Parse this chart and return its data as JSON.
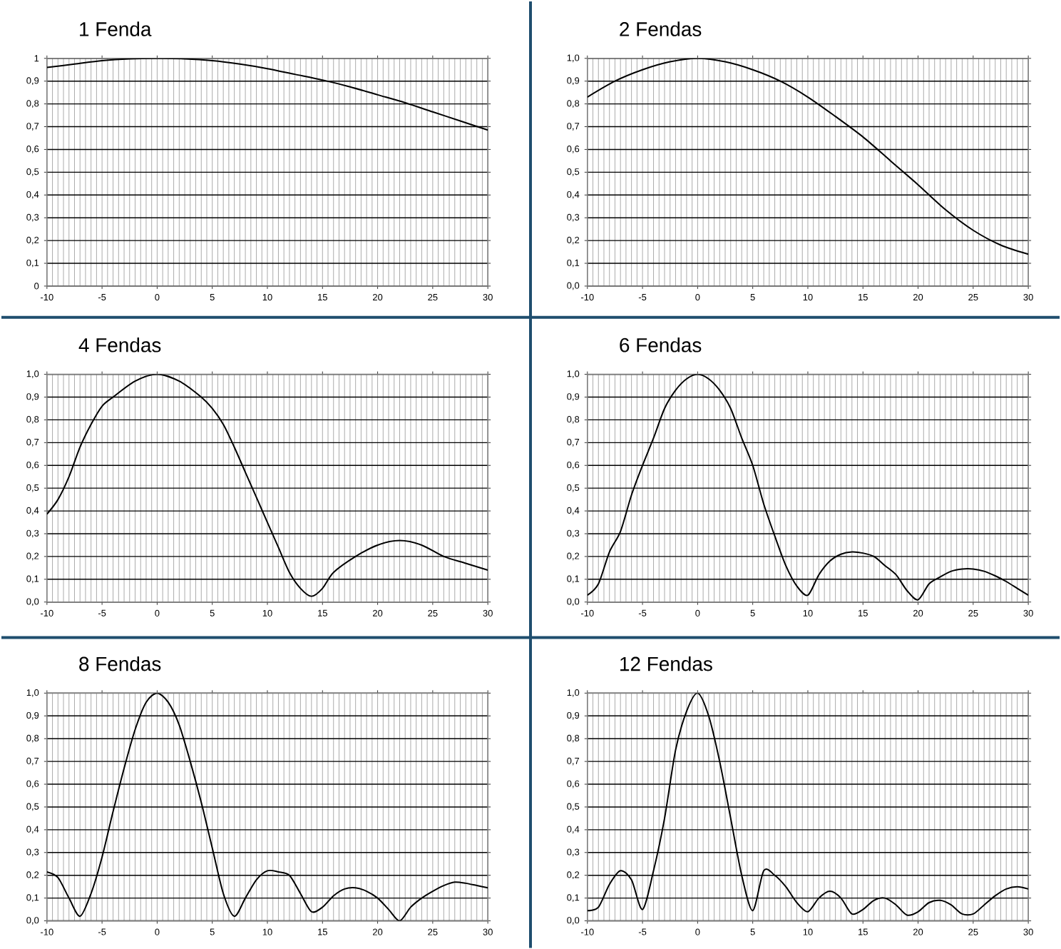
{
  "chart_data": [
    {
      "type": "line",
      "title": "1 Fenda",
      "color": "#000000",
      "xlim": [
        -10,
        30
      ],
      "ylim": [
        0,
        1
      ],
      "grid": true,
      "x": [
        -10,
        -7.5,
        -5,
        -2.5,
        0,
        2.5,
        5,
        7.5,
        10,
        12.5,
        15,
        17.5,
        20,
        22.5,
        25,
        27.5,
        30
      ],
      "values": [
        0.96,
        0.975,
        0.99,
        0.998,
        1,
        0.998,
        0.99,
        0.975,
        0.955,
        0.93,
        0.905,
        0.875,
        0.84,
        0.805,
        0.765,
        0.725,
        0.685
      ],
      "xticks": [
        -10,
        -5,
        0,
        5,
        10,
        15,
        20,
        25,
        30
      ],
      "yticks": [
        0,
        {
          "value": 0.1,
          "label": "0,1"
        },
        {
          "value": 0.2,
          "label": "0,2"
        },
        {
          "value": 0.3,
          "label": "0,3"
        },
        {
          "value": 0.4,
          "label": "0,4"
        },
        {
          "value": 0.5,
          "label": "0,5"
        },
        {
          "value": 0.6,
          "label": "0,6"
        },
        {
          "value": 0.7,
          "label": "0,7"
        },
        {
          "value": 0.8,
          "label": "0,8"
        },
        {
          "value": 0.9,
          "label": "0,9"
        },
        1
      ]
    },
    {
      "type": "line",
      "title": "2 Fendas",
      "color": "#000000",
      "xlim": [
        -10,
        30
      ],
      "ylim": [
        0,
        1
      ],
      "grid": true,
      "x": [
        -10,
        -7.5,
        -5,
        -2.5,
        0,
        2.5,
        5,
        7.5,
        10,
        12.5,
        15,
        17.5,
        20,
        22.5,
        25,
        27.5,
        30
      ],
      "values": [
        0.83,
        0.9,
        0.95,
        0.985,
        1,
        0.985,
        0.95,
        0.9,
        0.83,
        0.745,
        0.655,
        0.55,
        0.445,
        0.335,
        0.245,
        0.18,
        0.14
      ],
      "xticks": [
        -10,
        -5,
        0,
        5,
        10,
        15,
        20,
        25,
        30
      ],
      "yticks": [
        {
          "value": 0,
          "label": "0,0"
        },
        {
          "value": 0.1,
          "label": "0,1"
        },
        {
          "value": 0.2,
          "label": "0,2"
        },
        {
          "value": 0.3,
          "label": "0,3"
        },
        {
          "value": 0.4,
          "label": "0,4"
        },
        {
          "value": 0.5,
          "label": "0,5"
        },
        {
          "value": 0.6,
          "label": "0,6"
        },
        {
          "value": 0.7,
          "label": "0,7"
        },
        {
          "value": 0.8,
          "label": "0,8"
        },
        {
          "value": 0.9,
          "label": "0,9"
        },
        {
          "value": 1,
          "label": "1,0"
        }
      ]
    },
    {
      "type": "line",
      "title": "4 Fendas",
      "color": "#000000",
      "xlim": [
        -10,
        30
      ],
      "ylim": [
        0,
        1
      ],
      "grid": true,
      "x": [
        -10,
        -9,
        -8,
        -7,
        -6,
        -5,
        -4,
        -2,
        0,
        2,
        4,
        5,
        6,
        7,
        8,
        9,
        10,
        11,
        12,
        13,
        14,
        15,
        16,
        18,
        20,
        22,
        24,
        26,
        28,
        30
      ],
      "values": [
        0.386,
        0.45,
        0.55,
        0.68,
        0.78,
        0.86,
        0.9,
        0.97,
        1,
        0.97,
        0.9,
        0.85,
        0.78,
        0.68,
        0.57,
        0.46,
        0.35,
        0.24,
        0.13,
        0.06,
        0.025,
        0.06,
        0.13,
        0.2,
        0.25,
        0.27,
        0.25,
        0.2,
        0.17,
        0.14
      ],
      "xticks": [
        -10,
        -5,
        0,
        5,
        10,
        15,
        20,
        25,
        30
      ],
      "yticks": [
        {
          "value": 0,
          "label": "0,0"
        },
        {
          "value": 0.1,
          "label": "0,1"
        },
        {
          "value": 0.2,
          "label": "0,2"
        },
        {
          "value": 0.3,
          "label": "0,3"
        },
        {
          "value": 0.4,
          "label": "0,4"
        },
        {
          "value": 0.5,
          "label": "0,5"
        },
        {
          "value": 0.6,
          "label": "0,6"
        },
        {
          "value": 0.7,
          "label": "0,7"
        },
        {
          "value": 0.8,
          "label": "0,8"
        },
        {
          "value": 0.9,
          "label": "0,9"
        },
        {
          "value": 1,
          "label": "1,0"
        }
      ]
    },
    {
      "type": "line",
      "title": "6 Fendas",
      "color": "#000000",
      "xlim": [
        -10,
        30
      ],
      "ylim": [
        0,
        1
      ],
      "grid": true,
      "x": [
        -10,
        -9,
        -8,
        -7,
        -6,
        -5,
        -4,
        -3,
        -2,
        -1,
        0,
        1,
        2,
        3,
        4,
        5,
        6,
        7,
        8,
        9,
        10,
        11,
        12,
        13,
        14,
        15,
        16,
        17,
        18,
        19,
        20,
        21,
        22,
        23,
        24,
        25,
        26,
        27,
        28,
        29,
        30
      ],
      "values": [
        0.03,
        0.08,
        0.22,
        0.31,
        0.47,
        0.6,
        0.72,
        0.85,
        0.93,
        0.98,
        1,
        0.98,
        0.93,
        0.85,
        0.72,
        0.6,
        0.43,
        0.29,
        0.16,
        0.07,
        0.03,
        0.12,
        0.18,
        0.21,
        0.22,
        0.215,
        0.2,
        0.16,
        0.12,
        0.05,
        0.01,
        0.08,
        0.11,
        0.135,
        0.145,
        0.145,
        0.135,
        0.115,
        0.09,
        0.06,
        0.03
      ],
      "xticks": [
        -10,
        -5,
        0,
        5,
        10,
        15,
        20,
        25,
        30
      ],
      "yticks": [
        {
          "value": 0,
          "label": "0,0"
        },
        {
          "value": 0.1,
          "label": "0,1"
        },
        {
          "value": 0.2,
          "label": "0,2"
        },
        {
          "value": 0.3,
          "label": "0,3"
        },
        {
          "value": 0.4,
          "label": "0,4"
        },
        {
          "value": 0.5,
          "label": "0,5"
        },
        {
          "value": 0.6,
          "label": "0,6"
        },
        {
          "value": 0.7,
          "label": "0,7"
        },
        {
          "value": 0.8,
          "label": "0,8"
        },
        {
          "value": 0.9,
          "label": "0,9"
        },
        {
          "value": 1,
          "label": "1,0"
        }
      ]
    },
    {
      "type": "line",
      "title": "8 Fendas",
      "color": "#000000",
      "xlim": [
        -10,
        30
      ],
      "ylim": [
        0,
        1
      ],
      "grid": true,
      "x": [
        -10,
        -9,
        -8,
        -7,
        -6,
        -5,
        -4,
        -3,
        -2,
        -1,
        0,
        1,
        2,
        3,
        4,
        5,
        6,
        7,
        8,
        9,
        10,
        11,
        12,
        13,
        14,
        15,
        16,
        17,
        18,
        19,
        20,
        21,
        22,
        23,
        24,
        25,
        26,
        27,
        28,
        29,
        30
      ],
      "values": [
        0.215,
        0.19,
        0.1,
        0.02,
        0.12,
        0.28,
        0.48,
        0.67,
        0.84,
        0.96,
        1,
        0.96,
        0.86,
        0.7,
        0.52,
        0.32,
        0.12,
        0.02,
        0.1,
        0.18,
        0.22,
        0.215,
        0.2,
        0.12,
        0.04,
        0.06,
        0.11,
        0.14,
        0.145,
        0.13,
        0.1,
        0.05,
        0.0,
        0.06,
        0.1,
        0.13,
        0.155,
        0.17,
        0.165,
        0.155,
        0.145
      ],
      "xticks": [
        -10,
        -5,
        0,
        5,
        10,
        15,
        20,
        25,
        30
      ],
      "yticks": [
        {
          "value": 0,
          "label": "0,0"
        },
        {
          "value": 0.1,
          "label": "0,1"
        },
        {
          "value": 0.2,
          "label": "0,2"
        },
        {
          "value": 0.3,
          "label": "0,3"
        },
        {
          "value": 0.4,
          "label": "0,4"
        },
        {
          "value": 0.5,
          "label": "0,5"
        },
        {
          "value": 0.6,
          "label": "0,6"
        },
        {
          "value": 0.7,
          "label": "0,7"
        },
        {
          "value": 0.8,
          "label": "0,8"
        },
        {
          "value": 0.9,
          "label": "0,9"
        },
        {
          "value": 1,
          "label": "1,0"
        }
      ]
    },
    {
      "type": "line",
      "title": "12 Fendas",
      "color": "#000000",
      "xlim": [
        -10,
        30
      ],
      "ylim": [
        0,
        1
      ],
      "grid": true,
      "x": [
        -10,
        -9,
        -8,
        -7,
        -6,
        -5,
        -4,
        -3,
        -2,
        -1,
        0,
        1,
        2,
        3,
        4,
        5,
        6,
        7,
        8,
        9,
        10,
        11,
        12,
        13,
        14,
        15,
        16,
        17,
        18,
        19,
        20,
        21,
        22,
        23,
        24,
        25,
        26,
        27,
        28,
        29,
        30
      ],
      "values": [
        0.045,
        0.06,
        0.16,
        0.22,
        0.18,
        0.05,
        0.22,
        0.45,
        0.75,
        0.92,
        1,
        0.9,
        0.7,
        0.45,
        0.2,
        0.045,
        0.22,
        0.2,
        0.15,
        0.08,
        0.04,
        0.1,
        0.13,
        0.1,
        0.03,
        0.05,
        0.09,
        0.1,
        0.07,
        0.025,
        0.04,
        0.08,
        0.09,
        0.07,
        0.03,
        0.03,
        0.07,
        0.11,
        0.14,
        0.15,
        0.14
      ],
      "xticks": [
        -10,
        -5,
        0,
        5,
        10,
        15,
        20,
        25,
        30
      ],
      "yticks": [
        {
          "value": 0,
          "label": "0,0"
        },
        {
          "value": 0.1,
          "label": "0,1"
        },
        {
          "value": 0.2,
          "label": "0,2"
        },
        {
          "value": 0.3,
          "label": "0,3"
        },
        {
          "value": 0.4,
          "label": "0,4"
        },
        {
          "value": 0.5,
          "label": "0,5"
        },
        {
          "value": 0.6,
          "label": "0,6"
        },
        {
          "value": 0.7,
          "label": "0,7"
        },
        {
          "value": 0.8,
          "label": "0,8"
        },
        {
          "value": 0.9,
          "label": "0,9"
        },
        {
          "value": 1,
          "label": "1,0"
        }
      ]
    }
  ]
}
